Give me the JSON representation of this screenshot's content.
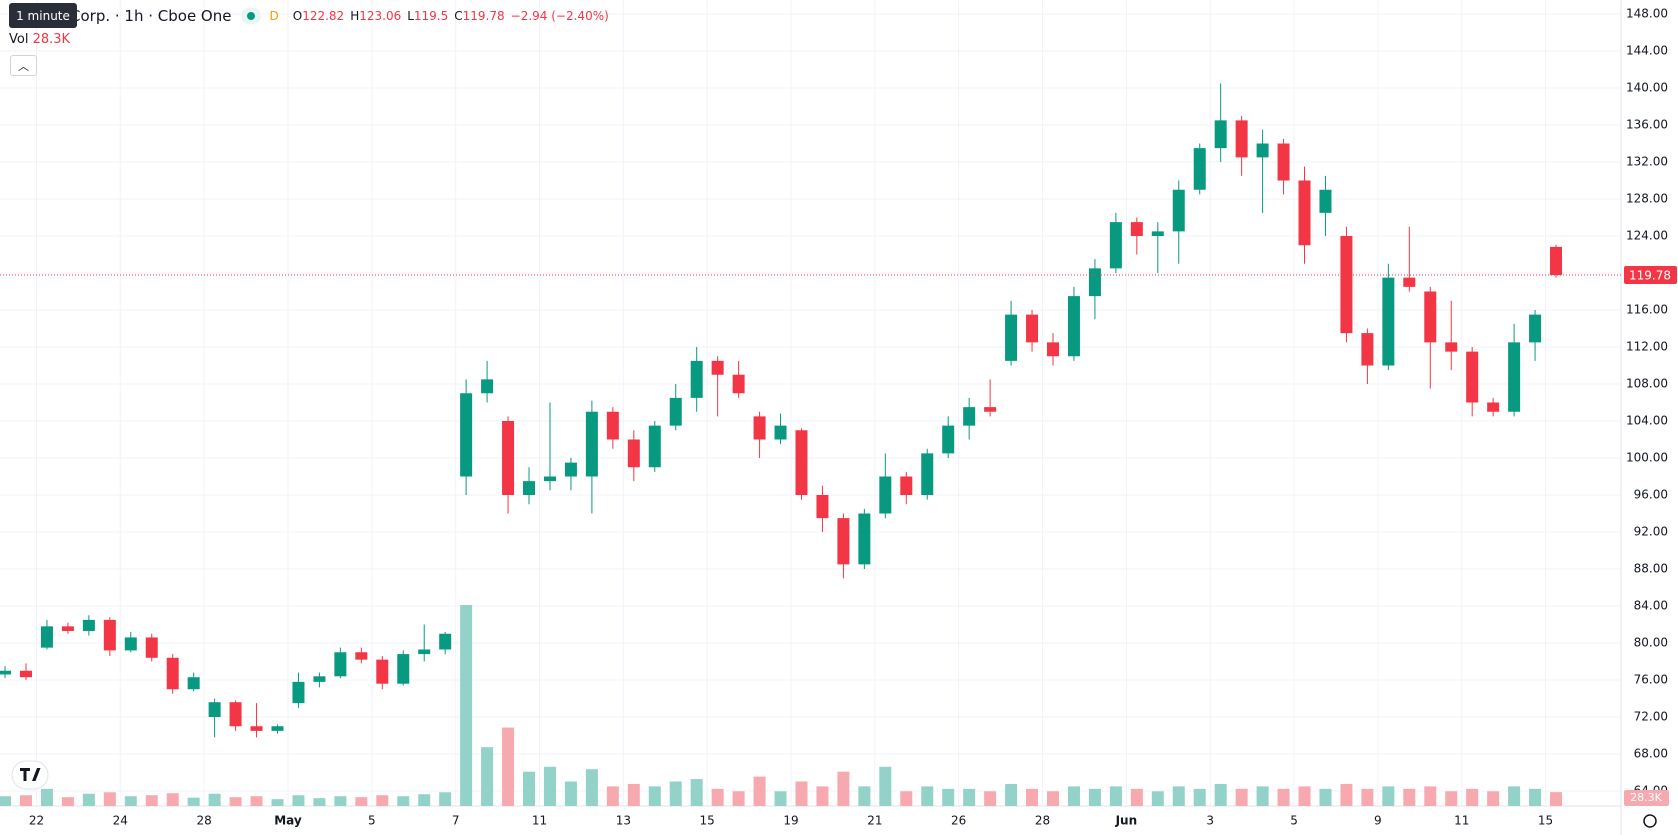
{
  "chart_data": {
    "type": "candlestick",
    "title": "Corp. · 1h · Cboe One",
    "interval_tooltip": "1 minute",
    "timeframe_badge": "D",
    "ohlc_letters": [
      "O",
      "H",
      "L",
      "C"
    ],
    "change": "−2.94 (−2.40%)",
    "volume_title": "Vol",
    "up_color": "#089981",
    "down_color": "#f23645",
    "volume_up_color": "#92d2c8",
    "volume_down_color": "#f7a9b0",
    "grid": true,
    "last_price_line": true,
    "xlim": [
      -0.87,
      37.8
    ],
    "xticks": [
      {
        "value": 0,
        "label": "22"
      },
      {
        "value": 2,
        "label": "24"
      },
      {
        "value": 4,
        "label": "28"
      },
      {
        "value": 6,
        "label": "May"
      },
      {
        "value": 8,
        "label": "5"
      },
      {
        "value": 10,
        "label": "7"
      },
      {
        "value": 12,
        "label": "11"
      },
      {
        "value": 14,
        "label": "13"
      },
      {
        "value": 16,
        "label": "15"
      },
      {
        "value": 18,
        "label": "19"
      },
      {
        "value": 20,
        "label": "21"
      },
      {
        "value": 22,
        "label": "26"
      },
      {
        "value": 24,
        "label": "28"
      },
      {
        "value": 26,
        "label": "Jun"
      },
      {
        "value": 28,
        "label": "3"
      },
      {
        "value": 30,
        "label": "5"
      },
      {
        "value": 32,
        "label": "9"
      },
      {
        "value": 34,
        "label": "11"
      },
      {
        "value": 36,
        "label": "15"
      }
    ],
    "ylim": [
      64,
      148
    ],
    "yticks": [
      {
        "value": 64,
        "label": "64.00"
      },
      {
        "value": 68,
        "label": "68.00"
      },
      {
        "value": 72,
        "label": "72.00"
      },
      {
        "value": 76,
        "label": "76.00"
      },
      {
        "value": 80,
        "label": "80.00"
      },
      {
        "value": 84,
        "label": "84.00"
      },
      {
        "value": 88,
        "label": "88.00"
      },
      {
        "value": 92,
        "label": "92.00"
      },
      {
        "value": 96,
        "label": "96.00"
      },
      {
        "value": 100,
        "label": "100.00"
      },
      {
        "value": 104,
        "label": "104.00"
      },
      {
        "value": 108,
        "label": "108.00"
      },
      {
        "value": 112,
        "label": "112.00"
      },
      {
        "value": 116,
        "label": "116.00"
      },
      {
        "value": 120,
        "label": "120.00"
      },
      {
        "value": 124,
        "label": "124.00"
      },
      {
        "value": 128,
        "label": "128.00"
      },
      {
        "value": 132,
        "label": "132.00"
      },
      {
        "value": 136,
        "label": "136.00"
      },
      {
        "value": 140,
        "label": "140.00"
      },
      {
        "value": 144,
        "label": "144.00"
      },
      {
        "value": 148,
        "label": "148.00"
      }
    ],
    "x": [
      -0.75,
      -0.25,
      0.25,
      0.75,
      1.25,
      1.75,
      2.25,
      2.75,
      3.25,
      3.75,
      4.25,
      4.75,
      5.25,
      5.75,
      6.25,
      6.75,
      7.25,
      7.75,
      8.25,
      8.75,
      9.25,
      9.75,
      10.25,
      10.75,
      11.25,
      11.75,
      12.25,
      12.75,
      13.25,
      13.75,
      14.25,
      14.75,
      15.25,
      15.75,
      16.25,
      16.75,
      17.25,
      17.75,
      18.25,
      18.75,
      19.25,
      19.75,
      20.25,
      20.75,
      21.25,
      21.75,
      22.25,
      22.75,
      23.25,
      23.75,
      24.25,
      24.75,
      25.25,
      25.75,
      26.25,
      26.75,
      27.25,
      27.75,
      28.25,
      28.75,
      29.25,
      29.75,
      30.25,
      30.75,
      31.25,
      31.75,
      32.25,
      32.75,
      33.25,
      33.75,
      34.25,
      34.75,
      35.25,
      35.75,
      36.25
    ],
    "open": [
      76.6,
      77.0,
      79.5,
      81.8,
      81.3,
      82.5,
      79.2,
      80.6,
      78.4,
      75.0,
      72.0,
      73.6,
      71.0,
      70.5,
      73.5,
      75.8,
      76.4,
      79.0,
      78.2,
      75.6,
      78.8,
      79.3,
      98.0,
      107.0,
      104.0,
      96.0,
      97.5,
      98.0,
      98.0,
      105.0,
      102.0,
      99.0,
      103.5,
      106.5,
      110.5,
      109.0,
      104.5,
      102.0,
      103.0,
      96.0,
      93.5,
      88.5,
      94.0,
      98.0,
      96.0,
      100.5,
      103.5,
      105.5,
      110.5,
      115.5,
      112.5,
      111.0,
      117.5,
      120.5,
      125.5,
      124.0,
      124.5,
      129.0,
      133.5,
      136.5,
      132.5,
      134.0,
      130.0,
      126.5,
      124.0,
      113.5,
      110.0,
      119.5,
      118.0,
      112.5,
      111.5,
      106.0,
      105.0,
      112.5,
      122.82
    ],
    "high": [
      77.5,
      77.8,
      82.5,
      82.2,
      83.0,
      82.8,
      81.2,
      81.0,
      78.8,
      76.8,
      74.0,
      73.8,
      73.5,
      71.2,
      76.8,
      76.8,
      79.5,
      79.5,
      78.6,
      79.2,
      82.0,
      81.2,
      108.5,
      110.5,
      104.5,
      99.0,
      106.0,
      100.0,
      106.2,
      105.5,
      103.0,
      104.0,
      108.0,
      112.0,
      111.0,
      110.5,
      105.0,
      104.8,
      103.2,
      97.0,
      94.0,
      94.5,
      100.5,
      98.5,
      101.0,
      104.5,
      106.5,
      108.5,
      117.0,
      116.0,
      113.5,
      118.5,
      121.5,
      126.5,
      126.0,
      125.5,
      130.0,
      134.0,
      140.5,
      137.0,
      135.5,
      134.5,
      131.5,
      130.5,
      125.0,
      114.0,
      121.0,
      125.0,
      118.5,
      117.0,
      112.0,
      106.5,
      114.5,
      116.0,
      123.06
    ],
    "low": [
      76.2,
      76.0,
      79.3,
      81.0,
      80.8,
      78.6,
      79.0,
      78.0,
      74.5,
      74.8,
      69.8,
      70.5,
      69.8,
      70.2,
      73.0,
      75.2,
      76.2,
      77.8,
      75.0,
      75.4,
      78.0,
      78.8,
      96.0,
      106.0,
      94.0,
      95.0,
      96.5,
      96.5,
      94.0,
      101.0,
      97.5,
      98.5,
      103.0,
      105.0,
      104.5,
      106.5,
      100.0,
      101.5,
      95.5,
      92.0,
      87.0,
      88.0,
      93.5,
      95.0,
      95.5,
      100.0,
      102.0,
      104.5,
      110.0,
      111.5,
      110.0,
      110.5,
      115.0,
      120.0,
      122.0,
      120.0,
      121.0,
      128.5,
      132.0,
      130.5,
      126.5,
      128.5,
      121.0,
      124.0,
      112.5,
      108.0,
      109.5,
      118.0,
      107.5,
      109.5,
      104.5,
      104.5,
      104.5,
      110.5,
      119.5
    ],
    "close": [
      77.0,
      76.3,
      81.8,
      81.3,
      82.5,
      79.2,
      80.6,
      78.4,
      75.0,
      76.3,
      73.6,
      71.0,
      70.5,
      71.0,
      75.8,
      76.4,
      79.0,
      78.2,
      75.6,
      78.8,
      79.3,
      81.0,
      107.0,
      108.5,
      96.0,
      97.5,
      98.0,
      99.5,
      105.0,
      102.0,
      99.0,
      103.5,
      106.5,
      110.5,
      109.0,
      107.0,
      102.0,
      103.5,
      96.0,
      93.5,
      88.5,
      94.0,
      98.0,
      96.0,
      100.5,
      103.5,
      105.5,
      105.0,
      115.5,
      112.5,
      111.0,
      117.5,
      120.5,
      125.5,
      124.0,
      124.5,
      129.0,
      133.5,
      136.5,
      132.5,
      134.0,
      130.0,
      123.0,
      129.0,
      113.5,
      110.0,
      119.5,
      118.5,
      112.5,
      111.5,
      106.0,
      105.0,
      112.5,
      115.5,
      119.78
    ],
    "volume": [
      20000,
      22000,
      35000,
      18000,
      25000,
      28000,
      20000,
      22000,
      26000,
      17000,
      25000,
      18000,
      20000,
      14000,
      22000,
      16000,
      20000,
      18000,
      22000,
      20000,
      24000,
      28000,
      410000,
      120000,
      160000,
      70000,
      80000,
      50000,
      75000,
      40000,
      45000,
      40000,
      50000,
      55000,
      35000,
      30000,
      60000,
      30000,
      50000,
      40000,
      70000,
      40000,
      80000,
      30000,
      40000,
      35000,
      35000,
      30000,
      45000,
      35000,
      30000,
      40000,
      35000,
      40000,
      35000,
      30000,
      40000,
      35000,
      45000,
      35000,
      40000,
      35000,
      40000,
      35000,
      45000,
      35000,
      40000,
      35000,
      40000,
      30000,
      35000,
      30000,
      40000,
      35000,
      28300
    ],
    "volume_label": "28.3K"
  }
}
